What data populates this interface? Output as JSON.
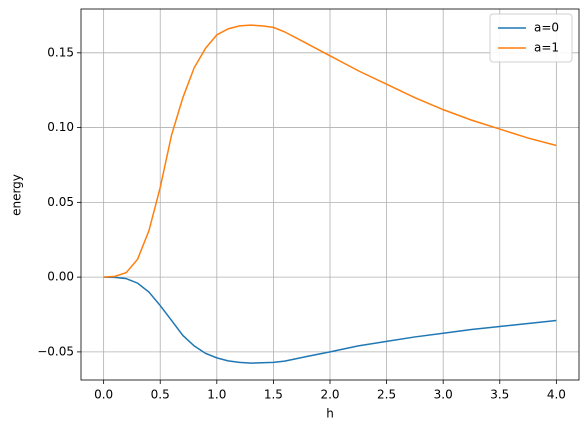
{
  "chart_data": {
    "type": "line",
    "xlabel": "h",
    "ylabel": "energy",
    "x": [
      0,
      0.1,
      0.2,
      0.3,
      0.4,
      0.5,
      0.6,
      0.7,
      0.8,
      0.9,
      1.0,
      1.1,
      1.2,
      1.3,
      1.4,
      1.5,
      1.6,
      1.8,
      2.0,
      2.25,
      2.5,
      2.75,
      3.0,
      3.25,
      3.5,
      3.75,
      4.0
    ],
    "series": [
      {
        "name": "a=0",
        "color": "#1f77b4",
        "values": [
          0,
          -0.0002,
          -0.001,
          -0.004,
          -0.01,
          -0.019,
          -0.029,
          -0.039,
          -0.046,
          -0.051,
          -0.054,
          -0.056,
          -0.057,
          -0.0575,
          -0.0573,
          -0.057,
          -0.0562,
          -0.053,
          -0.05,
          -0.046,
          -0.043,
          -0.04,
          -0.0375,
          -0.035,
          -0.033,
          -0.031,
          -0.029
        ]
      },
      {
        "name": "a=1",
        "color": "#ff7f0e",
        "values": [
          0,
          0.0005,
          0.003,
          0.012,
          0.031,
          0.06,
          0.095,
          0.12,
          0.14,
          0.153,
          0.162,
          0.166,
          0.168,
          0.1685,
          0.168,
          0.167,
          0.164,
          0.156,
          0.148,
          0.138,
          0.129,
          0.12,
          0.112,
          0.105,
          0.099,
          0.093,
          0.088
        ]
      }
    ],
    "xlim": [
      -0.2,
      4.2
    ],
    "ylim": [
      -0.0688,
      0.1793
    ],
    "xticks": [
      {
        "value": 0,
        "label": "0.0"
      },
      {
        "value": 0.5,
        "label": "0.5"
      },
      {
        "value": 1,
        "label": "1.0"
      },
      {
        "value": 1.5,
        "label": "1.5"
      },
      {
        "value": 2,
        "label": "2.0"
      },
      {
        "value": 2.5,
        "label": "2.5"
      },
      {
        "value": 3,
        "label": "3.0"
      },
      {
        "value": 3.5,
        "label": "3.5"
      },
      {
        "value": 4,
        "label": "4.0"
      }
    ],
    "yticks": [
      {
        "value": -0.05,
        "label": "−0.05"
      },
      {
        "value": 0,
        "label": "0.00"
      },
      {
        "value": 0.05,
        "label": "0.05"
      },
      {
        "value": 0.1,
        "label": "0.10"
      },
      {
        "value": 0.15,
        "label": "0.15"
      }
    ],
    "grid": true,
    "legend": "upper right"
  }
}
